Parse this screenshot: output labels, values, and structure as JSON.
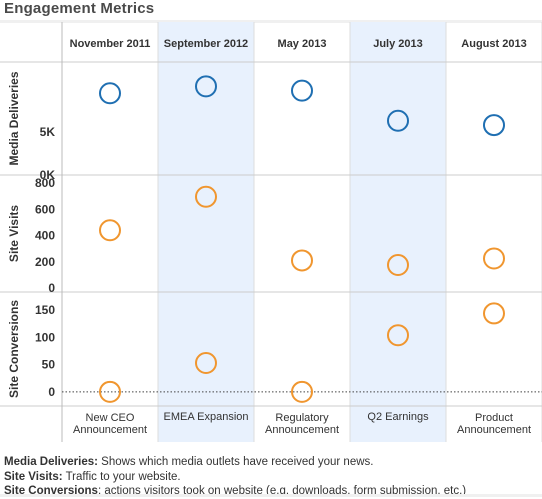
{
  "title": "Engagement Metrics",
  "chart_data": {
    "type": "scatter",
    "columns": [
      {
        "date": "November 2011",
        "event": "New CEO\nAnnouncement",
        "shaded": false
      },
      {
        "date": "September 2012",
        "event": "EMEA Expansion",
        "shaded": true
      },
      {
        "date": "May 2013",
        "event": "Regulatory\nAnnouncement",
        "shaded": false
      },
      {
        "date": "July 2013",
        "event": "Q2 Earnings",
        "shaded": true
      },
      {
        "date": "August 2013",
        "event": "Product\nAnnouncement",
        "shaded": false
      }
    ],
    "panels": [
      {
        "name": "Media Deliveries",
        "ylabel": "Media Deliveries",
        "color": "#1f6fb2",
        "ylim": [
          0,
          11500
        ],
        "ticks": [
          {
            "v": 0,
            "label": "0K"
          },
          {
            "v": 5000,
            "label": "5K"
          }
        ],
        "values": [
          9500,
          10300,
          9800,
          6300,
          5800
        ],
        "zero_line": false
      },
      {
        "name": "Site Visits",
        "ylabel": "Site Visits",
        "color": "#f0962f",
        "ylim": [
          0,
          800
        ],
        "ticks": [
          {
            "v": 0,
            "label": "0"
          },
          {
            "v": 200,
            "label": "200"
          },
          {
            "v": 400,
            "label": "400"
          },
          {
            "v": 600,
            "label": "600"
          },
          {
            "v": 800,
            "label": "800"
          }
        ],
        "values": [
          440,
          695,
          210,
          175,
          225
        ],
        "zero_line": false
      },
      {
        "name": "Site Conversions",
        "ylabel": "Site Conversions",
        "color": "#f0962f",
        "ylim": [
          -15,
          165
        ],
        "ticks": [
          {
            "v": 0,
            "label": "0"
          },
          {
            "v": 50,
            "label": "50"
          },
          {
            "v": 100,
            "label": "100"
          },
          {
            "v": 150,
            "label": "150"
          }
        ],
        "values": [
          0,
          53,
          0,
          104,
          144
        ],
        "zero_line": true
      }
    ]
  },
  "notes": [
    {
      "label": "Media Deliveries:",
      "text": " Shows which media outlets have received your news."
    },
    {
      "label": "Site Visits:",
      "text": " Traffic to your website."
    },
    {
      "label": "Site Conversions",
      "text": ": actions visitors took on website (e.g. downloads, form submission, etc.)"
    }
  ]
}
